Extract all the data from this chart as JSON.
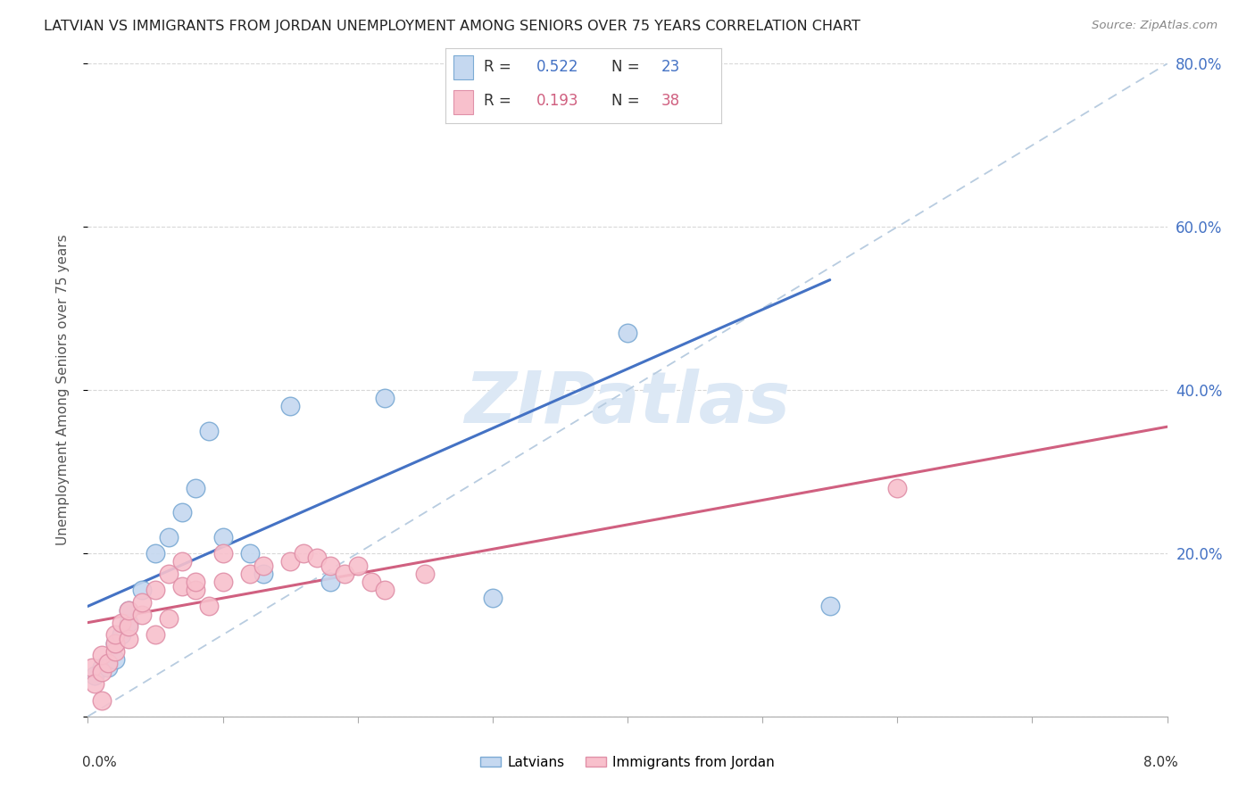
{
  "title": "LATVIAN VS IMMIGRANTS FROM JORDAN UNEMPLOYMENT AMONG SENIORS OVER 75 YEARS CORRELATION CHART",
  "source": "Source: ZipAtlas.com",
  "ylabel": "Unemployment Among Seniors over 75 years",
  "xlim": [
    0.0,
    0.08
  ],
  "ylim": [
    0.0,
    0.8
  ],
  "yticks": [
    0.0,
    0.2,
    0.4,
    0.6,
    0.8
  ],
  "ytick_labels_right": [
    "",
    "20.0%",
    "40.0%",
    "60.0%",
    "80.0%"
  ],
  "xticks": [
    0.0,
    0.01,
    0.02,
    0.03,
    0.04,
    0.05,
    0.06,
    0.07,
    0.08
  ],
  "legend_latvians": "Latvians",
  "legend_jordan": "Immigrants from Jordan",
  "r_latvians": "0.522",
  "n_latvians": "23",
  "r_jordan": "0.193",
  "n_jordan": "38",
  "color_latvians_fill": "#c5d8f0",
  "color_latvians_edge": "#7baad4",
  "color_jordan_fill": "#f8c0cc",
  "color_jordan_edge": "#e090a8",
  "color_line_latvians": "#4472c4",
  "color_line_jordan": "#d06080",
  "color_dashed": "#b8cce0",
  "color_ytick_right": "#4472c4",
  "color_xlabel": "#333333",
  "latvians_x": [
    0.0005,
    0.001,
    0.0015,
    0.002,
    0.002,
    0.0025,
    0.003,
    0.003,
    0.004,
    0.005,
    0.006,
    0.007,
    0.008,
    0.009,
    0.01,
    0.012,
    0.013,
    0.015,
    0.018,
    0.022,
    0.03,
    0.04,
    0.055
  ],
  "latvians_y": [
    0.05,
    0.06,
    0.06,
    0.07,
    0.09,
    0.1,
    0.115,
    0.13,
    0.155,
    0.2,
    0.22,
    0.25,
    0.28,
    0.35,
    0.22,
    0.2,
    0.175,
    0.38,
    0.165,
    0.39,
    0.145,
    0.47,
    0.135
  ],
  "jordan_x": [
    0.0003,
    0.0005,
    0.001,
    0.001,
    0.0015,
    0.002,
    0.002,
    0.002,
    0.0025,
    0.003,
    0.003,
    0.003,
    0.004,
    0.004,
    0.005,
    0.005,
    0.006,
    0.006,
    0.007,
    0.007,
    0.008,
    0.008,
    0.009,
    0.01,
    0.01,
    0.012,
    0.013,
    0.015,
    0.016,
    0.017,
    0.018,
    0.019,
    0.02,
    0.021,
    0.022,
    0.025,
    0.06,
    0.001
  ],
  "jordan_y": [
    0.06,
    0.04,
    0.055,
    0.075,
    0.065,
    0.08,
    0.09,
    0.1,
    0.115,
    0.095,
    0.11,
    0.13,
    0.125,
    0.14,
    0.1,
    0.155,
    0.12,
    0.175,
    0.16,
    0.19,
    0.155,
    0.165,
    0.135,
    0.2,
    0.165,
    0.175,
    0.185,
    0.19,
    0.2,
    0.195,
    0.185,
    0.175,
    0.185,
    0.165,
    0.155,
    0.175,
    0.28,
    0.02
  ],
  "trend_latvians_x0": 0.0,
  "trend_latvians_y0": 0.135,
  "trend_latvians_x1": 0.055,
  "trend_latvians_y1": 0.535,
  "trend_jordan_x0": 0.0,
  "trend_jordan_y0": 0.115,
  "trend_jordan_x1": 0.08,
  "trend_jordan_y1": 0.355,
  "watermark": "ZIPatlas",
  "background_color": "#ffffff",
  "grid_color": "#d8d8d8"
}
